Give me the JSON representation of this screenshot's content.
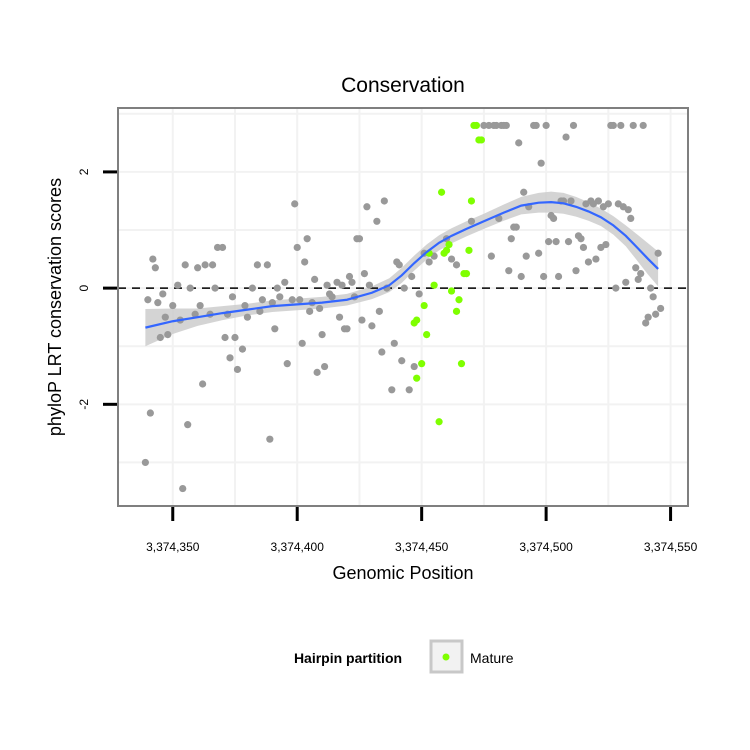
{
  "colors": {
    "panel_border": "#7f7f7f",
    "grid": "#f2f2f2",
    "point_default": "#999999",
    "point_mature": "#7fff00",
    "smooth_line": "#3366ff",
    "ribbon": "#cccccc",
    "zero_line": "#000000"
  },
  "chart_data": {
    "type": "scatter",
    "title": "Conservation",
    "xlabel": "Genomic Position",
    "ylabel": "phyloP LRT conservation scores",
    "xlim": [
      3374328,
      3374557
    ],
    "ylim": [
      -3.75,
      3.1
    ],
    "x_ticks": [
      3374350,
      3374400,
      3374450,
      3374500,
      3374550
    ],
    "x_tick_labels": [
      "3,374,350",
      "3,374,400",
      "3,374,450",
      "3,374,500",
      "3,374,550"
    ],
    "y_ticks": [
      -2,
      0,
      2
    ],
    "y_tick_labels": [
      "-2",
      "0",
      "2"
    ],
    "reference_line": {
      "y": 0,
      "style": "dashed"
    },
    "legend": {
      "title": "Hairpin partition",
      "position": "bottom",
      "entries": [
        {
          "label": "Mature",
          "color": "#7fff00"
        }
      ]
    },
    "series": [
      {
        "name": "Other",
        "color": "#999999",
        "points": [
          [
            3374339,
            -3.0
          ],
          [
            3374341,
            -2.15
          ],
          [
            3374340,
            -0.2
          ],
          [
            3374342,
            0.5
          ],
          [
            3374343,
            0.35
          ],
          [
            3374344,
            -0.25
          ],
          [
            3374345,
            -0.85
          ],
          [
            3374346,
            -0.1
          ],
          [
            3374347,
            -0.5
          ],
          [
            3374348,
            -0.8
          ],
          [
            3374350,
            -0.3
          ],
          [
            3374352,
            0.05
          ],
          [
            3374353,
            -0.55
          ],
          [
            3374354,
            -3.45
          ],
          [
            3374355,
            0.4
          ],
          [
            3374356,
            -2.35
          ],
          [
            3374357,
            0.0
          ],
          [
            3374359,
            -0.45
          ],
          [
            3374360,
            0.35
          ],
          [
            3374361,
            -0.3
          ],
          [
            3374362,
            -1.65
          ],
          [
            3374363,
            0.4
          ],
          [
            3374365,
            -0.45
          ],
          [
            3374366,
            0.4
          ],
          [
            3374367,
            0.0
          ],
          [
            3374368,
            0.7
          ],
          [
            3374370,
            0.7
          ],
          [
            3374371,
            -0.85
          ],
          [
            3374372,
            -0.45
          ],
          [
            3374373,
            -1.2
          ],
          [
            3374374,
            -0.15
          ],
          [
            3374375,
            -0.85
          ],
          [
            3374376,
            -1.4
          ],
          [
            3374378,
            -1.05
          ],
          [
            3374379,
            -0.3
          ],
          [
            3374380,
            -0.5
          ],
          [
            3374382,
            0.0
          ],
          [
            3374384,
            0.4
          ],
          [
            3374385,
            -0.4
          ],
          [
            3374386,
            -0.2
          ],
          [
            3374388,
            0.4
          ],
          [
            3374389,
            -2.6
          ],
          [
            3374390,
            -0.25
          ],
          [
            3374391,
            -0.7
          ],
          [
            3374392,
            0.0
          ],
          [
            3374393,
            -0.15
          ],
          [
            3374395,
            0.1
          ],
          [
            3374396,
            -1.3
          ],
          [
            3374398,
            -0.2
          ],
          [
            3374399,
            1.45
          ],
          [
            3374400,
            0.7
          ],
          [
            3374401,
            -0.2
          ],
          [
            3374402,
            -0.95
          ],
          [
            3374403,
            0.45
          ],
          [
            3374404,
            0.85
          ],
          [
            3374405,
            -0.4
          ],
          [
            3374406,
            -0.25
          ],
          [
            3374407,
            0.15
          ],
          [
            3374408,
            -1.45
          ],
          [
            3374409,
            -0.35
          ],
          [
            3374410,
            -0.8
          ],
          [
            3374411,
            -1.35
          ],
          [
            3374412,
            0.05
          ],
          [
            3374413,
            -0.1
          ],
          [
            3374414,
            -0.15
          ],
          [
            3374416,
            0.1
          ],
          [
            3374417,
            -0.5
          ],
          [
            3374418,
            0.05
          ],
          [
            3374419,
            -0.7
          ],
          [
            3374420,
            -0.7
          ],
          [
            3374421,
            0.2
          ],
          [
            3374422,
            0.1
          ],
          [
            3374423,
            -0.15
          ],
          [
            3374424,
            0.85
          ],
          [
            3374425,
            0.85
          ],
          [
            3374426,
            -0.55
          ],
          [
            3374427,
            0.25
          ],
          [
            3374428,
            1.4
          ],
          [
            3374429,
            0.05
          ],
          [
            3374430,
            -0.65
          ],
          [
            3374432,
            1.15
          ],
          [
            3374433,
            -0.4
          ],
          [
            3374434,
            -1.1
          ],
          [
            3374435,
            1.5
          ],
          [
            3374436,
            0.0
          ],
          [
            3374438,
            -1.75
          ],
          [
            3374439,
            -0.95
          ],
          [
            3374440,
            0.45
          ],
          [
            3374441,
            0.4
          ],
          [
            3374442,
            -1.25
          ],
          [
            3374443,
            0.0
          ],
          [
            3374445,
            -1.75
          ],
          [
            3374446,
            0.2
          ],
          [
            3374447,
            -1.35
          ],
          [
            3374449,
            -0.1
          ],
          [
            3374451,
            0.6
          ],
          [
            3374453,
            0.45
          ],
          [
            3374455,
            0.55
          ],
          [
            3374460,
            0.85
          ],
          [
            3374462,
            0.5
          ],
          [
            3374464,
            0.4
          ],
          [
            3374470,
            1.15
          ],
          [
            3374475,
            2.8
          ],
          [
            3374477,
            2.8
          ],
          [
            3374478,
            0.55
          ],
          [
            3374479,
            2.8
          ],
          [
            3374480,
            2.8
          ],
          [
            3374481,
            1.2
          ],
          [
            3374482,
            2.8
          ],
          [
            3374483,
            2.8
          ],
          [
            3374484,
            2.8
          ],
          [
            3374485,
            0.3
          ],
          [
            3374486,
            0.85
          ],
          [
            3374487,
            1.05
          ],
          [
            3374488,
            1.05
          ],
          [
            3374489,
            2.5
          ],
          [
            3374490,
            0.2
          ],
          [
            3374491,
            1.65
          ],
          [
            3374492,
            0.55
          ],
          [
            3374493,
            1.4
          ],
          [
            3374495,
            2.8
          ],
          [
            3374496,
            2.8
          ],
          [
            3374497,
            0.6
          ],
          [
            3374498,
            2.15
          ],
          [
            3374499,
            0.2
          ],
          [
            3374500,
            2.8
          ],
          [
            3374501,
            0.8
          ],
          [
            3374502,
            1.25
          ],
          [
            3374503,
            1.2
          ],
          [
            3374504,
            0.8
          ],
          [
            3374505,
            0.2
          ],
          [
            3374506,
            1.5
          ],
          [
            3374507,
            1.5
          ],
          [
            3374508,
            2.6
          ],
          [
            3374509,
            0.8
          ],
          [
            3374510,
            1.5
          ],
          [
            3374511,
            2.8
          ],
          [
            3374512,
            0.3
          ],
          [
            3374513,
            0.9
          ],
          [
            3374514,
            0.85
          ],
          [
            3374515,
            0.7
          ],
          [
            3374516,
            1.45
          ],
          [
            3374517,
            0.45
          ],
          [
            3374518,
            1.5
          ],
          [
            3374519,
            1.45
          ],
          [
            3374520,
            0.5
          ],
          [
            3374521,
            1.5
          ],
          [
            3374522,
            0.7
          ],
          [
            3374523,
            1.4
          ],
          [
            3374524,
            0.75
          ],
          [
            3374525,
            1.45
          ],
          [
            3374526,
            2.8
          ],
          [
            3374527,
            2.8
          ],
          [
            3374528,
            0.0
          ],
          [
            3374529,
            1.45
          ],
          [
            3374530,
            2.8
          ],
          [
            3374531,
            1.4
          ],
          [
            3374532,
            0.1
          ],
          [
            3374533,
            1.35
          ],
          [
            3374534,
            1.2
          ],
          [
            3374535,
            2.8
          ],
          [
            3374536,
            0.35
          ],
          [
            3374537,
            0.15
          ],
          [
            3374538,
            0.25
          ],
          [
            3374539,
            2.8
          ],
          [
            3374540,
            -0.6
          ],
          [
            3374541,
            -0.5
          ],
          [
            3374542,
            0.0
          ],
          [
            3374543,
            -0.15
          ],
          [
            3374544,
            -0.45
          ],
          [
            3374545,
            0.6
          ],
          [
            3374546,
            -0.35
          ]
        ]
      },
      {
        "name": "Mature",
        "color": "#7fff00",
        "points": [
          [
            3374447,
            -0.6
          ],
          [
            3374448,
            -0.55
          ],
          [
            3374448,
            -1.55
          ],
          [
            3374450,
            -1.3
          ],
          [
            3374451,
            -0.3
          ],
          [
            3374452,
            -0.8
          ],
          [
            3374453,
            0.6
          ],
          [
            3374455,
            0.05
          ],
          [
            3374457,
            -2.3
          ],
          [
            3374458,
            1.65
          ],
          [
            3374459,
            0.6
          ],
          [
            3374460,
            0.65
          ],
          [
            3374461,
            0.75
          ],
          [
            3374462,
            -0.05
          ],
          [
            3374464,
            -0.4
          ],
          [
            3374465,
            -0.2
          ],
          [
            3374466,
            -1.3
          ],
          [
            3374467,
            0.25
          ],
          [
            3374468,
            0.25
          ],
          [
            3374469,
            0.65
          ],
          [
            3374470,
            1.5
          ],
          [
            3374471,
            2.8
          ],
          [
            3374472,
            2.8
          ],
          [
            3374473,
            2.55
          ],
          [
            3374474,
            2.55
          ]
        ]
      }
    ],
    "smooth": {
      "method": "loess",
      "x": [
        3374339,
        3374350,
        3374360,
        3374370,
        3374380,
        3374390,
        3374400,
        3374410,
        3374420,
        3374430,
        3374437,
        3374442,
        3374447,
        3374452,
        3374457,
        3374462,
        3374468,
        3374475,
        3374483,
        3374490,
        3374497,
        3374502,
        3374507,
        3374512,
        3374517,
        3374522,
        3374527,
        3374532,
        3374537,
        3374541,
        3374545
      ],
      "y": [
        -0.68,
        -0.57,
        -0.5,
        -0.43,
        -0.37,
        -0.31,
        -0.28,
        -0.25,
        -0.2,
        -0.08,
        0.05,
        0.22,
        0.43,
        0.62,
        0.78,
        0.9,
        1.02,
        1.15,
        1.3,
        1.42,
        1.47,
        1.48,
        1.46,
        1.4,
        1.32,
        1.22,
        1.08,
        0.9,
        0.68,
        0.5,
        0.33
      ],
      "se": [
        0.32,
        0.22,
        0.15,
        0.12,
        0.1,
        0.1,
        0.1,
        0.1,
        0.1,
        0.11,
        0.12,
        0.13,
        0.13,
        0.13,
        0.13,
        0.13,
        0.13,
        0.13,
        0.14,
        0.15,
        0.17,
        0.18,
        0.18,
        0.17,
        0.16,
        0.15,
        0.16,
        0.18,
        0.23,
        0.27,
        0.3
      ]
    }
  }
}
